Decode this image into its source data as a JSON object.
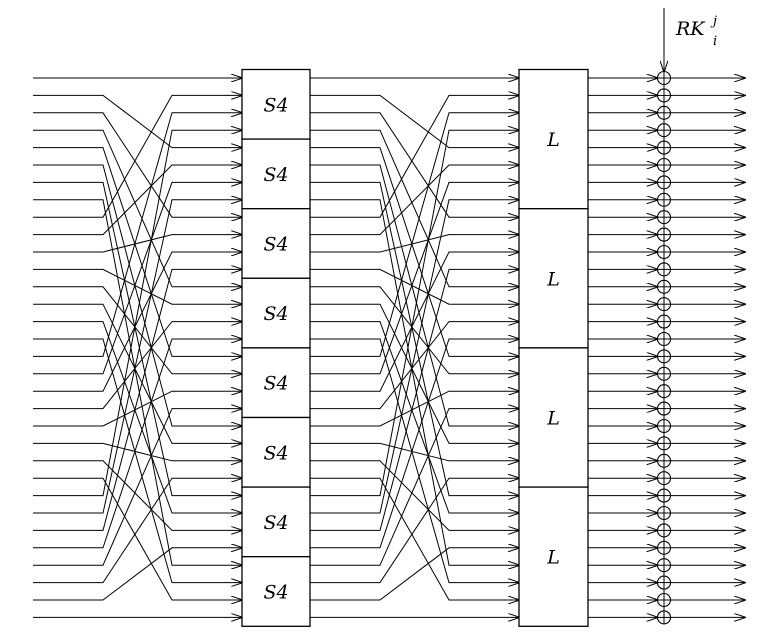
{
  "diagram": {
    "wire_count": 32,
    "sbox": {
      "label": "S4",
      "count": 8,
      "width_bits": 4
    },
    "linear": {
      "label": "L",
      "count": 4,
      "width_bits": 8
    },
    "round_key": {
      "base": "RK",
      "superscript": "j",
      "subscript": "i"
    },
    "permutation_1": [
      0,
      4,
      8,
      12,
      16,
      20,
      24,
      28,
      1,
      5,
      9,
      13,
      17,
      21,
      25,
      29,
      2,
      6,
      10,
      14,
      18,
      22,
      26,
      30,
      3,
      7,
      11,
      15,
      19,
      23,
      27,
      31
    ],
    "permutation_2": [
      0,
      4,
      8,
      12,
      16,
      20,
      24,
      28,
      1,
      5,
      9,
      13,
      17,
      21,
      25,
      29,
      2,
      6,
      10,
      14,
      18,
      22,
      26,
      30,
      3,
      7,
      11,
      15,
      19,
      23,
      27,
      31
    ]
  }
}
